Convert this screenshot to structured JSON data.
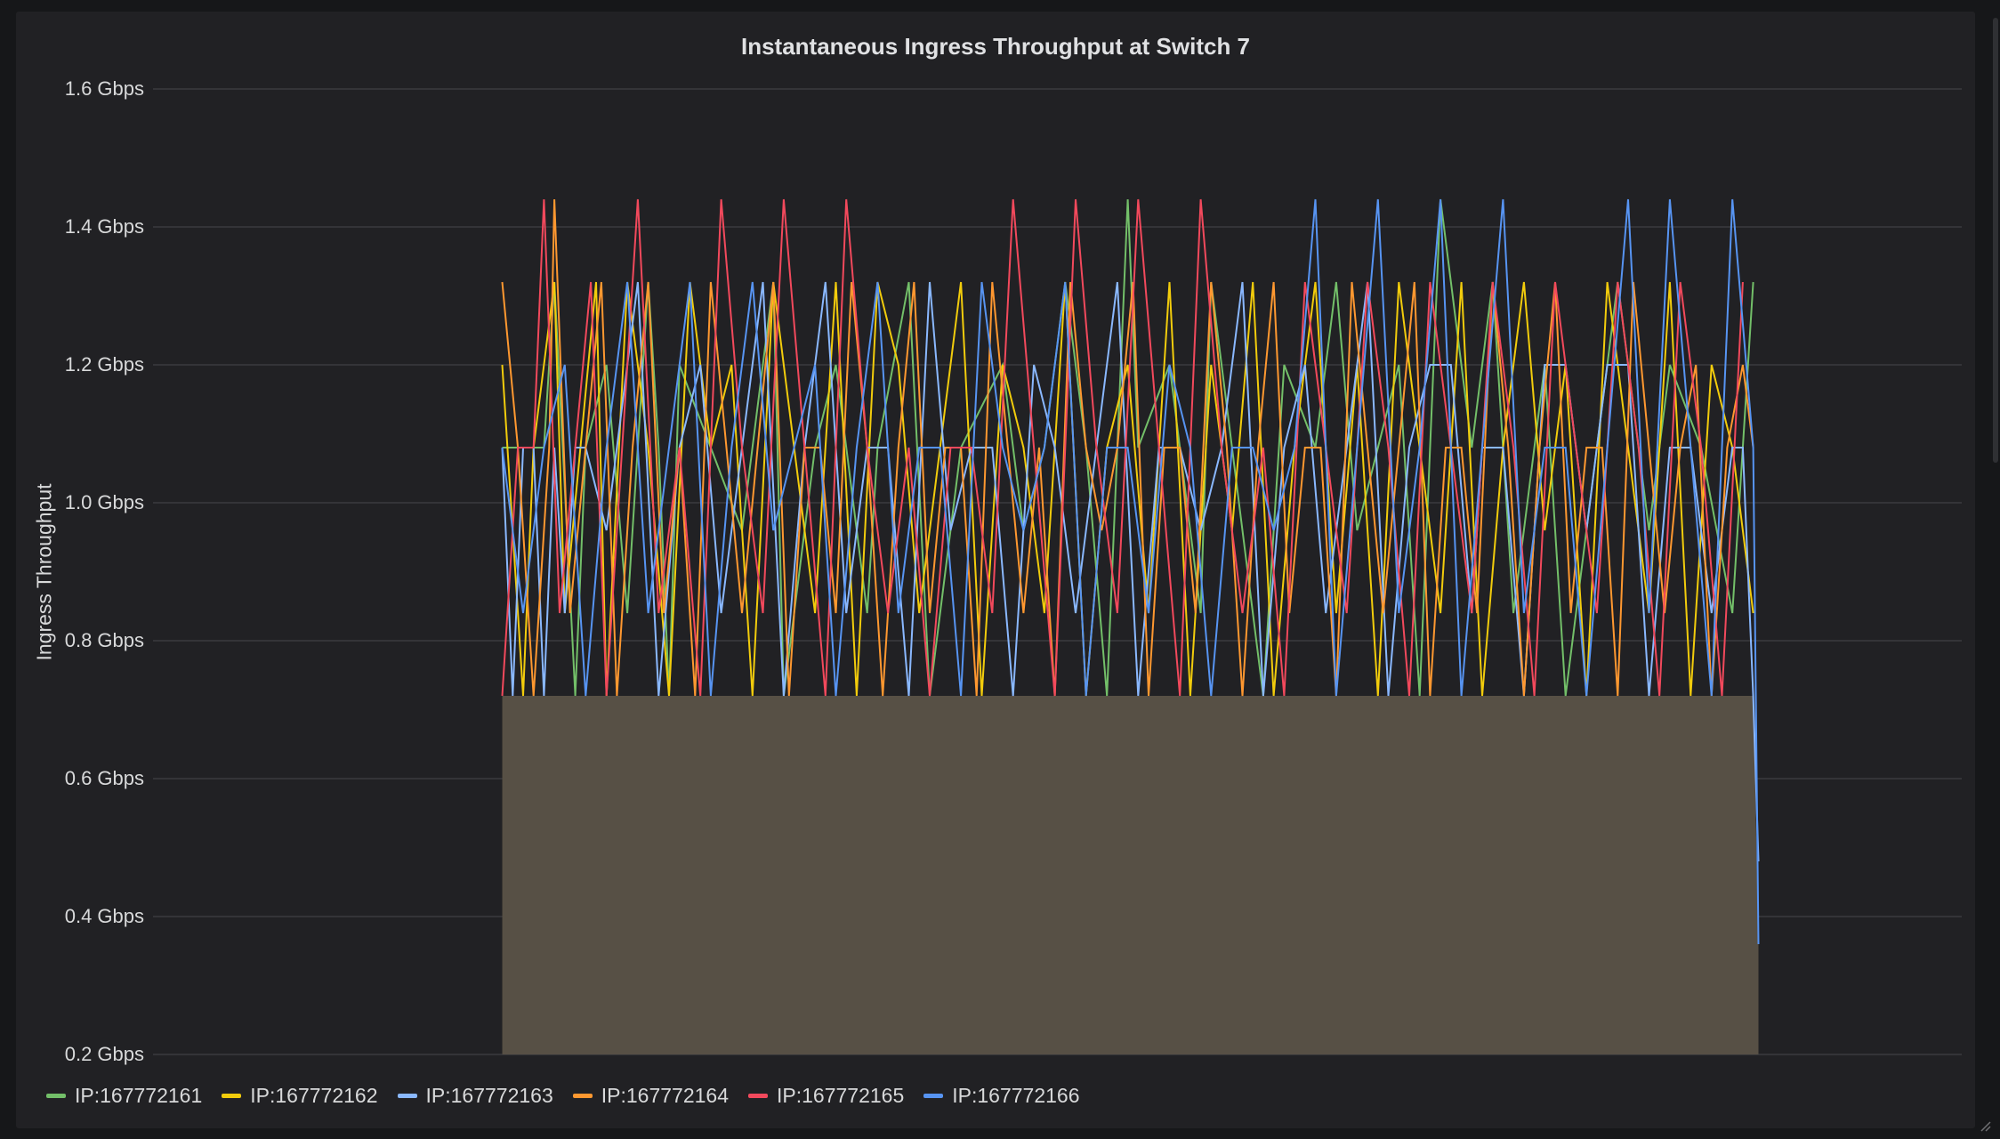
{
  "panel": {
    "title": "Instantaneous Ingress Throughput at Switch 7"
  },
  "chart_data": {
    "type": "line",
    "title": "Instantaneous Ingress Throughput at Switch 7",
    "ylabel": "Ingress Throughput",
    "xlabel": "",
    "ylim": [
      0.2,
      1.6
    ],
    "y_unit": "Gbps",
    "y_ticks": [
      "0.2 Gbps",
      "0.4 Gbps",
      "0.6 Gbps",
      "0.8 Gbps",
      "1.0 Gbps",
      "1.2 Gbps",
      "1.4 Gbps",
      "1.6 Gbps"
    ],
    "y_tick_values": [
      0.2,
      0.4,
      0.6,
      0.8,
      1.0,
      1.2,
      1.4,
      1.6
    ],
    "grid": true,
    "legend_position": "bottom-left",
    "x_extent": [
      0,
      240
    ],
    "x_range": [
      0,
      240
    ],
    "x_full": [
      -67,
      280
    ],
    "fill": {
      "color": "#575045",
      "top": 0.72,
      "start": 0,
      "end": 240,
      "tail_end": 0.36
    },
    "series": [
      {
        "name": "IP:167772161",
        "color": "#73bf69",
        "x": [
          0,
          8,
          10,
          14,
          16,
          20,
          24,
          28,
          30,
          32,
          34,
          40,
          46,
          52,
          54,
          60,
          64,
          70,
          72,
          78,
          82,
          88,
          96,
          100,
          104,
          108,
          112,
          116,
          120,
          122,
          128,
          134,
          136,
          140,
          146,
          150,
          156,
          160,
          164,
          168,
          172,
          176,
          180,
          186,
          190,
          194,
          198,
          200,
          204,
          210,
          214,
          220,
          224,
          230,
          236,
          240
        ],
        "y": [
          1.08,
          1.08,
          1.32,
          0.72,
          1.08,
          1.2,
          0.84,
          1.32,
          1.08,
          0.72,
          1.2,
          1.08,
          0.96,
          1.32,
          0.72,
          1.08,
          1.2,
          0.84,
          1.08,
          1.32,
          0.72,
          1.08,
          1.2,
          0.96,
          1.08,
          1.32,
          1.08,
          0.72,
          1.44,
          1.08,
          1.2,
          0.84,
          1.32,
          1.08,
          0.72,
          1.2,
          1.08,
          1.32,
          0.96,
          1.08,
          1.2,
          0.72,
          1.44,
          1.08,
          1.32,
          0.84,
          1.08,
          1.2,
          0.72,
          1.08,
          1.32,
          0.96,
          1.2,
          1.08,
          0.84,
          1.32
        ]
      },
      {
        "name": "IP:167772162",
        "color": "#f2cc0c",
        "x": [
          0,
          4,
          6,
          10,
          12,
          18,
          20,
          24,
          28,
          32,
          36,
          40,
          44,
          48,
          52,
          56,
          60,
          64,
          68,
          72,
          76,
          80,
          84,
          88,
          92,
          96,
          100,
          104,
          108,
          112,
          116,
          120,
          124,
          128,
          132,
          136,
          140,
          144,
          148,
          152,
          156,
          160,
          164,
          168,
          172,
          176,
          180,
          184,
          188,
          192,
          196,
          200,
          204,
          208,
          212,
          216,
          220,
          224,
          228,
          232,
          236,
          240
        ],
        "y": [
          1.2,
          0.72,
          1.08,
          1.32,
          0.84,
          1.32,
          0.72,
          1.32,
          1.08,
          0.72,
          1.32,
          1.08,
          1.2,
          0.72,
          1.32,
          1.08,
          0.84,
          1.32,
          0.72,
          1.32,
          1.2,
          0.84,
          1.08,
          1.32,
          0.72,
          1.2,
          1.08,
          0.84,
          1.32,
          0.72,
          1.08,
          1.2,
          0.84,
          1.32,
          0.72,
          1.2,
          0.96,
          1.32,
          0.72,
          1.08,
          1.32,
          0.84,
          1.2,
          0.72,
          1.32,
          1.08,
          0.84,
          1.32,
          0.72,
          1.08,
          1.32,
          0.96,
          1.2,
          0.72,
          1.32,
          1.08,
          0.84,
          1.32,
          0.72,
          1.2,
          1.08,
          0.84
        ]
      },
      {
        "name": "IP:167772163",
        "color": "#8ab8ff",
        "x": [
          0,
          2,
          4,
          6,
          8,
          10,
          12,
          14,
          16,
          20,
          22,
          26,
          30,
          34,
          38,
          42,
          46,
          50,
          54,
          58,
          62,
          66,
          70,
          74,
          78,
          82,
          86,
          90,
          94,
          98,
          102,
          106,
          110,
          114,
          118,
          122,
          126,
          130,
          134,
          138,
          142,
          146,
          150,
          154,
          158,
          162,
          166,
          170,
          174,
          178,
          182,
          186,
          188,
          192,
          196,
          200,
          204,
          208,
          210,
          212,
          216,
          220,
          224,
          228,
          232,
          236,
          238,
          240,
          241
        ],
        "y": [
          1.08,
          0.72,
          1.08,
          1.08,
          0.72,
          1.08,
          0.84,
          1.08,
          1.08,
          0.96,
          1.08,
          1.32,
          0.72,
          1.08,
          1.2,
          0.84,
          1.08,
          1.32,
          0.72,
          1.08,
          1.32,
          0.84,
          1.08,
          1.08,
          0.72,
          1.32,
          0.96,
          1.08,
          1.08,
          0.72,
          1.2,
          1.08,
          0.84,
          1.08,
          1.32,
          0.72,
          1.08,
          1.08,
          0.96,
          1.08,
          1.32,
          0.72,
          1.08,
          1.2,
          0.84,
          1.08,
          1.32,
          0.72,
          1.08,
          1.2,
          1.2,
          0.84,
          1.08,
          1.08,
          0.72,
          1.2,
          1.2,
          0.96,
          1.08,
          1.2,
          1.2,
          0.72,
          1.08,
          1.08,
          0.84,
          1.08,
          1.08,
          0.72,
          0.48
        ]
      },
      {
        "name": "IP:167772164",
        "color": "#ff9830",
        "x": [
          0,
          3,
          6,
          9,
          10,
          13,
          16,
          19,
          22,
          25,
          28,
          31,
          34,
          37,
          40,
          43,
          46,
          49,
          52,
          55,
          58,
          61,
          64,
          67,
          70,
          73,
          76,
          79,
          82,
          85,
          88,
          91,
          94,
          97,
          100,
          103,
          106,
          109,
          112,
          115,
          118,
          121,
          124,
          127,
          130,
          133,
          136,
          139,
          142,
          145,
          148,
          151,
          154,
          157,
          160,
          163,
          166,
          169,
          172,
          175,
          178,
          181,
          184,
          187,
          190,
          193,
          196,
          199,
          202,
          205,
          208,
          211,
          214,
          217,
          220,
          223,
          226,
          229,
          232,
          235,
          238,
          240
        ],
        "y": [
          1.32,
          1.08,
          0.72,
          1.08,
          1.44,
          0.84,
          1.08,
          1.32,
          0.72,
          1.08,
          1.32,
          0.84,
          1.08,
          0.72,
          1.32,
          1.08,
          0.84,
          1.08,
          1.32,
          0.72,
          1.08,
          1.08,
          0.84,
          1.32,
          1.08,
          0.72,
          1.08,
          1.32,
          0.84,
          1.08,
          1.08,
          0.72,
          1.32,
          1.08,
          0.84,
          1.08,
          0.72,
          1.32,
          1.08,
          0.96,
          1.08,
          1.32,
          0.72,
          1.08,
          1.08,
          0.84,
          1.32,
          1.08,
          0.72,
          1.08,
          1.32,
          0.84,
          1.08,
          1.08,
          0.72,
          1.32,
          1.08,
          0.84,
          1.08,
          1.32,
          0.72,
          1.08,
          1.08,
          0.84,
          1.32,
          1.08,
          0.72,
          1.08,
          1.32,
          0.84,
          1.08,
          1.08,
          0.72,
          1.32,
          1.08,
          0.84,
          1.08,
          1.2,
          0.72,
          1.08,
          1.2,
          1.08
        ]
      },
      {
        "name": "IP:167772165",
        "color": "#f2495c",
        "x": [
          0,
          3,
          6,
          8,
          11,
          14,
          17,
          20,
          23,
          26,
          30,
          34,
          38,
          42,
          46,
          50,
          54,
          58,
          62,
          66,
          70,
          74,
          78,
          82,
          86,
          90,
          94,
          98,
          102,
          106,
          110,
          114,
          118,
          122,
          126,
          130,
          134,
          138,
          142,
          146,
          150,
          154,
          158,
          162,
          166,
          170,
          174,
          178,
          182,
          186,
          190,
          194,
          198,
          202,
          206,
          210,
          214,
          218,
          222,
          226,
          230,
          234,
          238
        ],
        "y": [
          0.72,
          1.08,
          1.08,
          1.44,
          0.84,
          1.08,
          1.32,
          0.72,
          1.08,
          1.44,
          0.84,
          1.08,
          0.72,
          1.44,
          1.08,
          0.84,
          1.44,
          1.08,
          0.72,
          1.44,
          1.08,
          0.84,
          1.08,
          0.72,
          1.08,
          1.08,
          0.84,
          1.44,
          1.08,
          0.72,
          1.44,
          1.08,
          0.84,
          1.44,
          1.08,
          0.72,
          1.44,
          1.08,
          0.84,
          1.08,
          0.72,
          1.32,
          1.08,
          0.84,
          1.32,
          1.08,
          0.72,
          1.32,
          1.08,
          0.84,
          1.32,
          1.08,
          0.72,
          1.32,
          1.08,
          0.84,
          1.32,
          1.08,
          0.72,
          1.32,
          1.08,
          0.72,
          1.32
        ]
      },
      {
        "name": "IP:167772166",
        "color": "#5794f2",
        "x": [
          0,
          4,
          8,
          12,
          16,
          20,
          24,
          28,
          32,
          36,
          40,
          44,
          48,
          52,
          56,
          60,
          64,
          68,
          72,
          76,
          80,
          84,
          88,
          92,
          96,
          100,
          104,
          108,
          112,
          116,
          120,
          124,
          128,
          132,
          136,
          140,
          144,
          148,
          152,
          156,
          160,
          164,
          168,
          172,
          176,
          180,
          184,
          188,
          192,
          196,
          200,
          204,
          208,
          212,
          216,
          220,
          224,
          228,
          232,
          236,
          240,
          241
        ],
        "y": [
          1.08,
          0.84,
          1.08,
          1.2,
          0.72,
          1.08,
          1.32,
          0.84,
          1.08,
          1.32,
          0.72,
          1.08,
          1.32,
          0.96,
          1.08,
          1.2,
          0.72,
          1.08,
          1.32,
          0.84,
          1.08,
          1.08,
          0.72,
          1.32,
          1.08,
          0.96,
          1.08,
          1.32,
          0.72,
          1.08,
          1.08,
          0.84,
          1.2,
          1.08,
          0.72,
          1.08,
          1.08,
          0.96,
          1.08,
          1.44,
          0.72,
          1.08,
          1.44,
          0.84,
          1.08,
          1.44,
          0.72,
          1.08,
          1.44,
          0.84,
          1.08,
          1.08,
          0.72,
          1.08,
          1.44,
          0.84,
          1.44,
          1.08,
          0.72,
          1.44,
          1.08,
          0.36
        ]
      }
    ]
  },
  "legend": [
    {
      "label": "IP:167772161",
      "color": "#73bf69"
    },
    {
      "label": "IP:167772162",
      "color": "#f2cc0c"
    },
    {
      "label": "IP:167772163",
      "color": "#8ab8ff"
    },
    {
      "label": "IP:167772164",
      "color": "#ff9830"
    },
    {
      "label": "IP:167772165",
      "color": "#f2495c"
    },
    {
      "label": "IP:167772166",
      "color": "#5794f2"
    }
  ]
}
